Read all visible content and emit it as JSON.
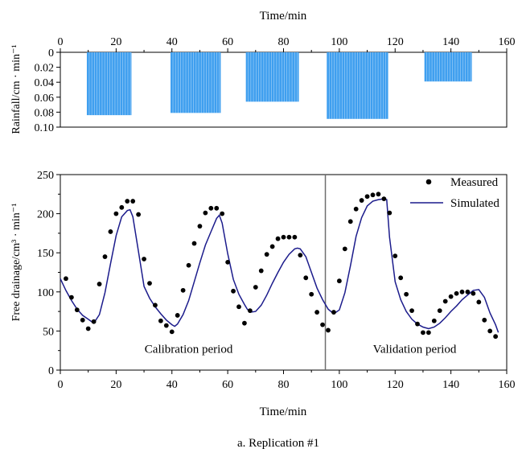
{
  "caption": "a. Replication #1",
  "colors": {
    "rain_bar": "#3f9fef",
    "simulated": "#1c1c8c",
    "measured": "#000000",
    "divider": "#6e6e6e"
  },
  "chart_data": [
    {
      "type": "bar",
      "xlabel": "Time/min",
      "ylabel": "Rainfall/cm · min⁻¹",
      "x_axis_position": "top",
      "y_inverted": true,
      "xlim": [
        0,
        160
      ],
      "ylim": [
        0,
        0.1
      ],
      "xticks": [
        0,
        20,
        40,
        60,
        80,
        100,
        120,
        140,
        160
      ],
      "yticks": [
        0,
        0.02,
        0.04,
        0.06,
        0.08,
        0.1
      ],
      "ytick_labels": [
        "0",
        "0.02",
        "0.04",
        "0.06",
        "0.08",
        "0.10"
      ],
      "grid": false,
      "series": [
        {
          "start": 9.5,
          "end": 25.5,
          "value": 0.084
        },
        {
          "start": 39.5,
          "end": 57.5,
          "value": 0.081
        },
        {
          "start": 66.5,
          "end": 85.5,
          "value": 0.066
        },
        {
          "start": 95.5,
          "end": 117.5,
          "value": 0.089
        },
        {
          "start": 130.5,
          "end": 147.5,
          "value": 0.039
        }
      ]
    },
    {
      "type": "line",
      "xlabel": "Time/min",
      "ylabel": "Free drainage/cm³ · min⁻¹",
      "xlim": [
        0,
        160
      ],
      "ylim": [
        0,
        250
      ],
      "xticks": [
        0,
        20,
        40,
        60,
        80,
        100,
        120,
        140,
        160
      ],
      "yticks": [
        0,
        50,
        100,
        150,
        200,
        250
      ],
      "grid": false,
      "legend": "top-right",
      "annotations": [
        {
          "text": "Calibration period",
          "x": 46,
          "y": 22
        },
        {
          "text": "Validation period",
          "x": 127,
          "y": 22
        }
      ],
      "vline": 95,
      "series": [
        {
          "name": "Measured",
          "style": "markers",
          "x": [
            2,
            4,
            6,
            8,
            10,
            12,
            14,
            16,
            18,
            20,
            22,
            24,
            26,
            28,
            30,
            32,
            34,
            36,
            38,
            40,
            42,
            44,
            46,
            48,
            50,
            52,
            54,
            56,
            58,
            60,
            62,
            64,
            66,
            68,
            70,
            72,
            74,
            76,
            78,
            80,
            82,
            84,
            86,
            88,
            90,
            92,
            94,
            96,
            98,
            100,
            102,
            104,
            106,
            108,
            110,
            112,
            114,
            116,
            118,
            120,
            122,
            124,
            126,
            128,
            130,
            132,
            134,
            136,
            138,
            140,
            142,
            144,
            146,
            148,
            150,
            152,
            154,
            156
          ],
          "y": [
            117,
            93,
            77,
            64,
            53,
            62,
            110,
            145,
            177,
            200,
            208,
            216,
            216,
            199,
            142,
            111,
            83,
            63,
            57,
            49,
            70,
            102,
            134,
            162,
            184,
            201,
            207,
            207,
            200,
            138,
            101,
            81,
            60,
            76,
            106,
            127,
            148,
            158,
            168,
            170,
            170,
            170,
            147,
            118,
            97,
            74,
            58,
            51,
            74,
            114,
            155,
            190,
            206,
            217,
            222,
            224,
            225,
            219,
            201,
            146,
            118,
            97,
            76,
            59,
            48,
            48,
            63,
            76,
            88,
            94,
            98,
            100,
            100,
            98,
            87,
            64,
            50,
            43
          ]
        },
        {
          "name": "Simulated",
          "style": "line",
          "x": [
            0,
            2,
            4,
            6,
            8,
            10,
            12,
            14,
            16,
            18,
            20,
            22,
            24,
            25,
            26,
            28,
            30,
            32,
            34,
            36,
            38,
            40,
            41,
            42,
            44,
            46,
            48,
            50,
            52,
            54,
            56,
            57,
            58,
            60,
            62,
            64,
            66,
            67,
            68,
            70,
            72,
            74,
            76,
            78,
            80,
            82,
            84,
            85,
            86,
            88,
            90,
            92,
            94,
            96,
            98,
            100,
            102,
            104,
            106,
            108,
            110,
            112,
            114,
            116,
            117,
            118,
            120,
            122,
            124,
            126,
            128,
            130,
            132,
            134,
            136,
            138,
            140,
            142,
            144,
            146,
            148,
            150,
            152,
            154,
            156,
            157
          ],
          "y": [
            117,
            102,
            89,
            78,
            70,
            65,
            60,
            71,
            99,
            136,
            172,
            196,
            204,
            205,
            196,
            152,
            107,
            92,
            81,
            72,
            64,
            58,
            56,
            59,
            71,
            89,
            113,
            137,
            160,
            177,
            194,
            198,
            188,
            149,
            116,
            97,
            84,
            78,
            74,
            75,
            83,
            96,
            111,
            125,
            138,
            148,
            155,
            156,
            155,
            145,
            125,
            105,
            90,
            78,
            72,
            77,
            99,
            134,
            171,
            195,
            210,
            216,
            218,
            219,
            218,
            170,
            113,
            90,
            75,
            65,
            59,
            55,
            53,
            55,
            60,
            67,
            75,
            82,
            90,
            96,
            102,
            103,
            93,
            73,
            58,
            48
          ]
        }
      ]
    }
  ]
}
